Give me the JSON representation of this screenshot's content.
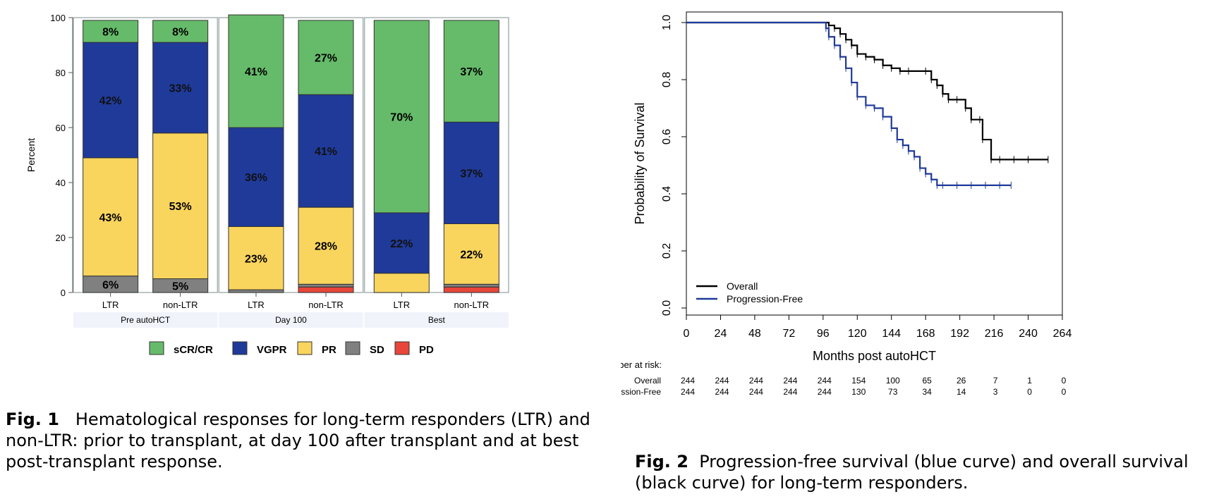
{
  "fig1": {
    "caption_label": "Fig. 1",
    "caption_text": "Hematological responses for long-term responders (LTR) and non-LTR: prior to transplant, at day 100 after transplant and at best post-transplant response."
  },
  "fig2": {
    "caption_label": "Fig. 2",
    "caption_text": "Progression-free survival (blue curve) and overall survival (black curve) for long-term responders."
  },
  "chart_data": [
    {
      "type": "bar",
      "stacked": true,
      "ylabel": "Percent",
      "ylim": [
        0,
        100
      ],
      "yticks": [
        0,
        20,
        40,
        60,
        80,
        100
      ],
      "groups": [
        "Pre autoHCT",
        "Day 100",
        "Best"
      ],
      "categories": [
        "LTR",
        "non-LTR"
      ],
      "bars": [
        {
          "group": "Pre autoHCT",
          "category": "LTR",
          "PD": 0,
          "SD": 6,
          "PR": 43,
          "VGPR": 42,
          "sCR/CR": 8
        },
        {
          "group": "Pre autoHCT",
          "category": "non-LTR",
          "PD": 0,
          "SD": 5,
          "PR": 53,
          "VGPR": 33,
          "sCR/CR": 8
        },
        {
          "group": "Day 100",
          "category": "LTR",
          "PD": 0,
          "SD": 1,
          "PR": 23,
          "VGPR": 36,
          "sCR/CR": 41
        },
        {
          "group": "Day 100",
          "category": "non-LTR",
          "PD": 2,
          "SD": 1,
          "PR": 28,
          "VGPR": 41,
          "sCR/CR": 27
        },
        {
          "group": "Best",
          "category": "LTR",
          "PD": 0,
          "SD": 0,
          "PR": 7,
          "VGPR": 22,
          "sCR/CR": 70
        },
        {
          "group": "Best",
          "category": "non-LTR",
          "PD": 2,
          "SD": 1,
          "PR": 22,
          "VGPR": 37,
          "sCR/CR": 37
        }
      ],
      "value_labels": [
        {
          "bar": 0,
          "series": "sCR/CR",
          "text": "8%"
        },
        {
          "bar": 0,
          "series": "VGPR",
          "text": "42%"
        },
        {
          "bar": 0,
          "series": "PR",
          "text": "43%"
        },
        {
          "bar": 0,
          "series": "SD",
          "text": "6%"
        },
        {
          "bar": 1,
          "series": "sCR/CR",
          "text": "8%"
        },
        {
          "bar": 1,
          "series": "VGPR",
          "text": "33%"
        },
        {
          "bar": 1,
          "series": "PR",
          "text": "53%"
        },
        {
          "bar": 1,
          "series": "SD",
          "text": "5%"
        },
        {
          "bar": 2,
          "series": "sCR/CR",
          "text": "41%"
        },
        {
          "bar": 2,
          "series": "VGPR",
          "text": "36%"
        },
        {
          "bar": 2,
          "series": "PR",
          "text": "23%"
        },
        {
          "bar": 3,
          "series": "sCR/CR",
          "text": "27%"
        },
        {
          "bar": 3,
          "series": "VGPR",
          "text": "41%"
        },
        {
          "bar": 3,
          "series": "PR",
          "text": "28%"
        },
        {
          "bar": 4,
          "series": "sCR/CR",
          "text": "70%"
        },
        {
          "bar": 4,
          "series": "VGPR",
          "text": "22%"
        },
        {
          "bar": 5,
          "series": "sCR/CR",
          "text": "37%"
        },
        {
          "bar": 5,
          "series": "VGPR",
          "text": "37%"
        },
        {
          "bar": 5,
          "series": "PR",
          "text": "22%"
        }
      ],
      "stack_order": [
        "PD",
        "SD",
        "PR",
        "VGPR",
        "sCR/CR"
      ],
      "legend": [
        {
          "name": "sCR/CR",
          "color": "#66bb6a"
        },
        {
          "name": "VGPR",
          "color": "#1f3a99"
        },
        {
          "name": "PR",
          "color": "#f9d55e"
        },
        {
          "name": "SD",
          "color": "#808080"
        },
        {
          "name": "PD",
          "color": "#e8463a"
        }
      ],
      "legend_position": "bottom"
    },
    {
      "type": "line",
      "step": true,
      "xlabel": "Months post autoHCT",
      "ylabel": "Probability of Survival",
      "xlim": [
        0,
        264
      ],
      "ylim": [
        0,
        1
      ],
      "xticks": [
        0,
        24,
        48,
        72,
        96,
        120,
        144,
        168,
        192,
        216,
        240,
        264
      ],
      "yticks": [
        "0.0",
        "0.2",
        "0.4",
        "0.6",
        "0.8",
        "1.0"
      ],
      "legend_position": "bottom-left",
      "series": [
        {
          "name": "Overall",
          "color": "#000000",
          "x": [
            0,
            96,
            100,
            104,
            108,
            112,
            116,
            120,
            126,
            132,
            138,
            144,
            150,
            156,
            168,
            172,
            176,
            180,
            184,
            190,
            196,
            200,
            206,
            208,
            214,
            220,
            230,
            240,
            254
          ],
          "y": [
            1,
            1,
            0.99,
            0.98,
            0.96,
            0.94,
            0.92,
            0.89,
            0.88,
            0.87,
            0.85,
            0.84,
            0.83,
            0.83,
            0.83,
            0.8,
            0.78,
            0.75,
            0.73,
            0.73,
            0.7,
            0.66,
            0.66,
            0.59,
            0.52,
            0.52,
            0.52,
            0.52,
            0.52
          ]
        },
        {
          "name": "Progression-Free",
          "color": "#1f3a99",
          "x": [
            0,
            96,
            98,
            100,
            104,
            108,
            112,
            116,
            120,
            126,
            132,
            138,
            144,
            148,
            152,
            156,
            160,
            164,
            168,
            172,
            176,
            180,
            190,
            200,
            210,
            220,
            228
          ],
          "y": [
            1,
            1,
            0.98,
            0.95,
            0.92,
            0.88,
            0.84,
            0.79,
            0.74,
            0.71,
            0.7,
            0.67,
            0.63,
            0.59,
            0.57,
            0.55,
            0.53,
            0.49,
            0.47,
            0.45,
            0.43,
            0.43,
            0.43,
            0.43,
            0.43,
            0.43,
            0.43
          ]
        }
      ],
      "risk_table": {
        "title": "Number at risk:",
        "rows": [
          {
            "label": "Overall",
            "values": [
              "244",
              "244",
              "244",
              "244",
              "244",
              "154",
              "100",
              "65",
              "26",
              "7",
              "1",
              "0"
            ]
          },
          {
            "label": "Progression-Free",
            "values": [
              "244",
              "244",
              "244",
              "244",
              "244",
              "130",
              "73",
              "34",
              "14",
              "3",
              "0",
              "0"
            ]
          }
        ]
      }
    }
  ]
}
